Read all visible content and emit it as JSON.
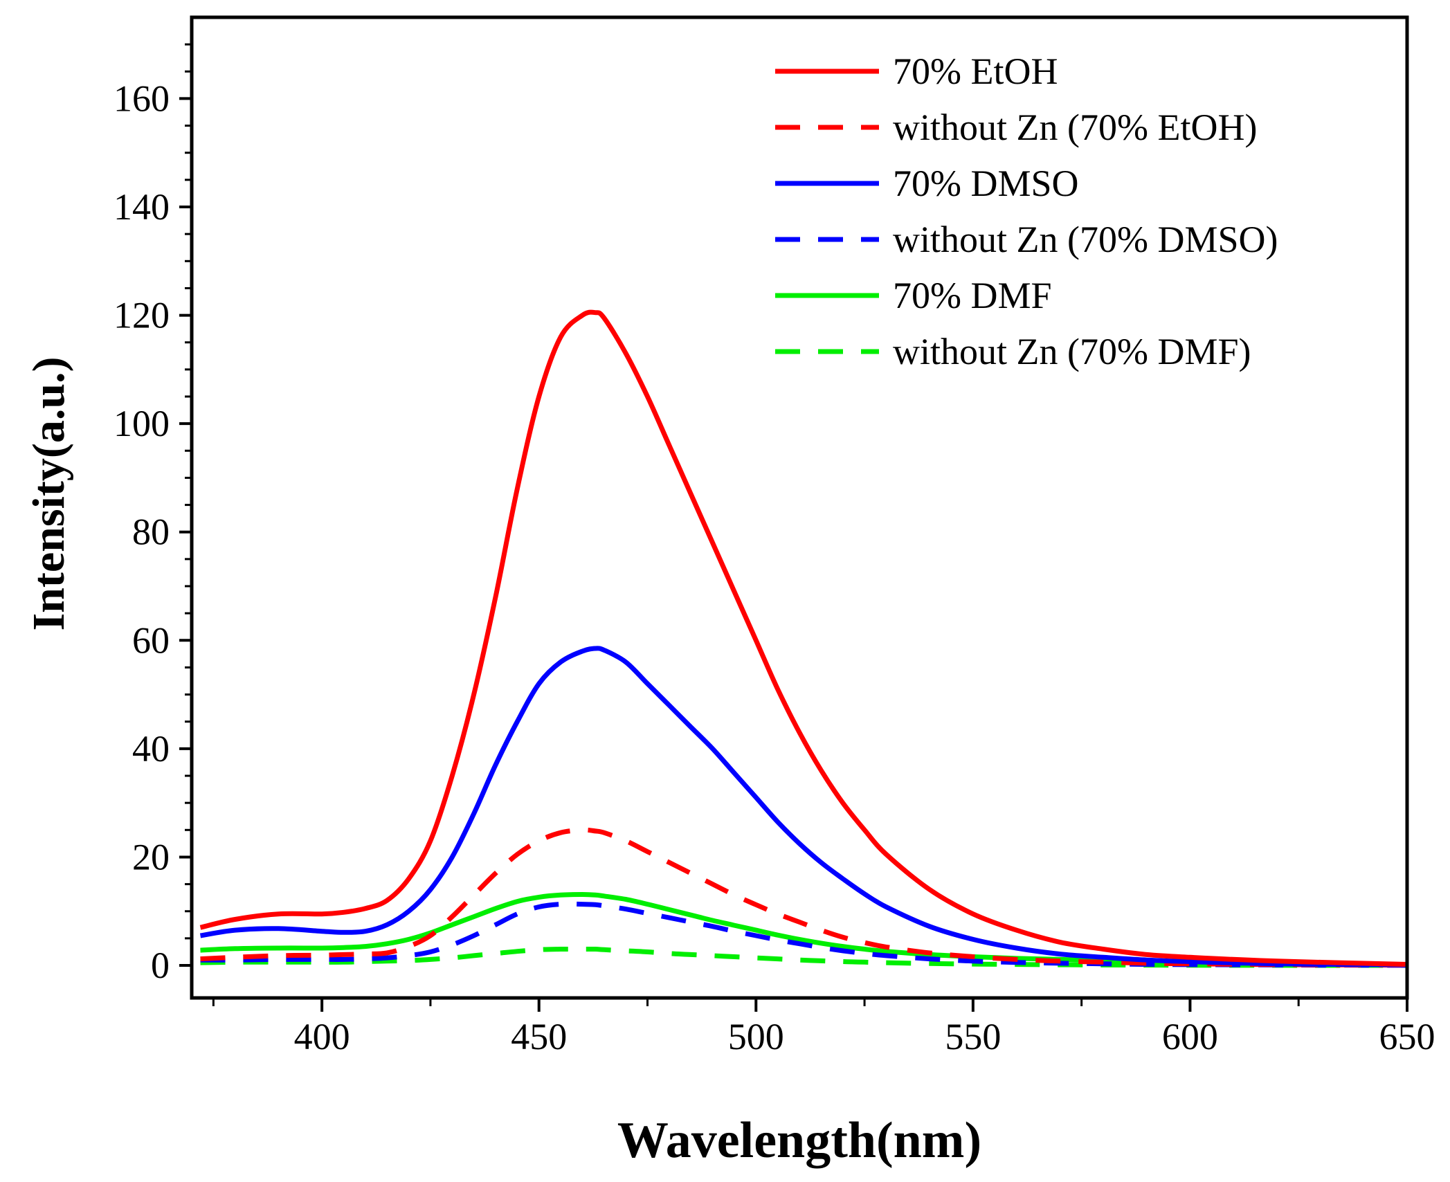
{
  "chart_data": {
    "type": "line",
    "title": "",
    "xlabel": "Wavelength(nm)",
    "ylabel": "Intensity(a.u.)",
    "xlim": [
      370,
      650
    ],
    "ylim": [
      -6,
      175
    ],
    "xticks": [
      400,
      450,
      500,
      550,
      600,
      650
    ],
    "xtick_labels": [
      "400",
      "450",
      "500",
      "550",
      "600",
      "650"
    ],
    "yticks": [
      0,
      20,
      40,
      60,
      80,
      100,
      120,
      140,
      160
    ],
    "ytick_labels": [
      "0",
      "20",
      "40",
      "60",
      "80",
      "100",
      "120",
      "140",
      "160"
    ],
    "grid": false,
    "legend_position": "top-right",
    "x": [
      372,
      380,
      390,
      400,
      405,
      410,
      415,
      420,
      425,
      430,
      435,
      440,
      445,
      450,
      455,
      460,
      463,
      465,
      470,
      475,
      480,
      485,
      490,
      495,
      500,
      505,
      510,
      515,
      520,
      525,
      530,
      540,
      550,
      560,
      570,
      580,
      590,
      600,
      620,
      650
    ],
    "series": [
      {
        "name": "70% EtOH",
        "color": "#ff0000",
        "dash": "solid",
        "values": [
          7,
          8.5,
          9.5,
          9.5,
          9.8,
          10.5,
          12,
          16,
          23,
          35,
          50,
          68,
          88,
          105,
          116,
          120,
          120.5,
          119.5,
          113,
          105,
          96,
          87,
          78,
          69,
          60,
          51,
          43,
          36,
          30,
          25,
          20.5,
          14,
          9.5,
          6.5,
          4.3,
          3,
          2,
          1.5,
          0.8,
          0.2
        ]
      },
      {
        "name": "without Zn (70% EtOH)",
        "color": "#ff0000",
        "dash": "dashed",
        "values": [
          1.2,
          1.5,
          1.8,
          1.9,
          2,
          2.1,
          2.3,
          3.5,
          5.5,
          9,
          13,
          17,
          20.5,
          23,
          24.5,
          25,
          24.8,
          24.5,
          23,
          21,
          19,
          17,
          15,
          13,
          11.2,
          9.5,
          8,
          6.5,
          5.2,
          4.2,
          3.4,
          2.3,
          1.6,
          1.1,
          0.8,
          0.6,
          0.4,
          0.3,
          0.15,
          0.05
        ]
      },
      {
        "name": "70% DMSO",
        "color": "#0000ff",
        "dash": "solid",
        "values": [
          5.5,
          6.5,
          6.8,
          6.3,
          6.1,
          6.3,
          7.5,
          10,
          14,
          20,
          28,
          37,
          45,
          52,
          56,
          58,
          58.5,
          58.2,
          56,
          52,
          48,
          44,
          40,
          35.5,
          31,
          26.5,
          22.5,
          19,
          16,
          13.2,
          10.8,
          7.2,
          4.8,
          3.2,
          2.1,
          1.5,
          1,
          0.7,
          0.3,
          0.1
        ]
      },
      {
        "name": "without Zn (70% DMSO)",
        "color": "#0000ff",
        "dash": "dashed",
        "values": [
          1,
          1,
          1.1,
          1.1,
          1.1,
          1.2,
          1.4,
          1.8,
          2.5,
          3.8,
          5.5,
          7.5,
          9.5,
          10.8,
          11.3,
          11.3,
          11.2,
          11,
          10.4,
          9.6,
          8.8,
          8,
          7.2,
          6.3,
          5.5,
          4.7,
          4,
          3.3,
          2.7,
          2.2,
          1.8,
          1.2,
          0.8,
          0.55,
          0.4,
          0.3,
          0.2,
          0.15,
          0.08,
          0.02
        ]
      },
      {
        "name": "70% DMF",
        "color": "#00ee00",
        "dash": "solid",
        "values": [
          2.8,
          3.1,
          3.2,
          3.2,
          3.3,
          3.5,
          4,
          4.8,
          6,
          7.5,
          9,
          10.5,
          11.8,
          12.6,
          13,
          13.1,
          13,
          12.8,
          12.2,
          11.3,
          10.3,
          9.3,
          8.3,
          7.4,
          6.5,
          5.6,
          4.8,
          4.1,
          3.5,
          3,
          2.6,
          2,
          1.6,
          1.3,
          1.1,
          0.9,
          0.7,
          0.5,
          0.3,
          0.1
        ]
      },
      {
        "name": "without Zn (70% DMF)",
        "color": "#00ee00",
        "dash": "dashed",
        "values": [
          0.5,
          0.6,
          0.6,
          0.6,
          0.6,
          0.7,
          0.8,
          0.9,
          1.1,
          1.4,
          1.8,
          2.2,
          2.6,
          2.9,
          3,
          3,
          3,
          2.9,
          2.7,
          2.5,
          2.2,
          2,
          1.8,
          1.6,
          1.4,
          1.2,
          1,
          0.85,
          0.7,
          0.6,
          0.5,
          0.35,
          0.25,
          0.18,
          0.12,
          0.08,
          0.05,
          0.03,
          0.01,
          0
        ]
      }
    ]
  }
}
